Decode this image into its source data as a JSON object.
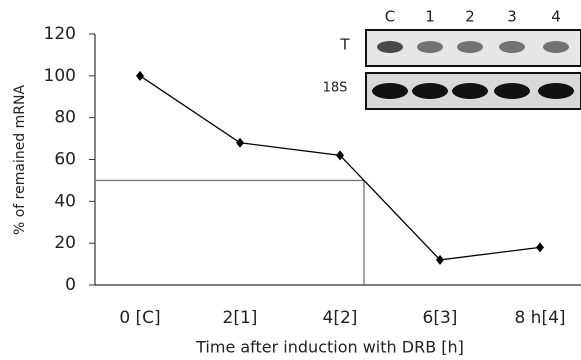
{
  "chart_data": {
    "type": "line",
    "x_label": "Time after induction with DRB [h]",
    "y_label": "% of remained mRNA",
    "categories": [
      "0 [C]",
      "2[1]",
      "4[2]",
      "6[3]",
      "8 h[4]"
    ],
    "values": [
      100,
      68,
      62,
      12,
      18
    ],
    "color": "#000000",
    "ylim": [
      0,
      120
    ],
    "yticks": [
      0,
      20,
      40,
      60,
      80,
      100,
      120
    ],
    "reference_y": 50,
    "inset": {
      "lanes": [
        "C",
        "1",
        "2",
        "3",
        "4"
      ],
      "rows": [
        "T",
        "18S"
      ]
    }
  }
}
